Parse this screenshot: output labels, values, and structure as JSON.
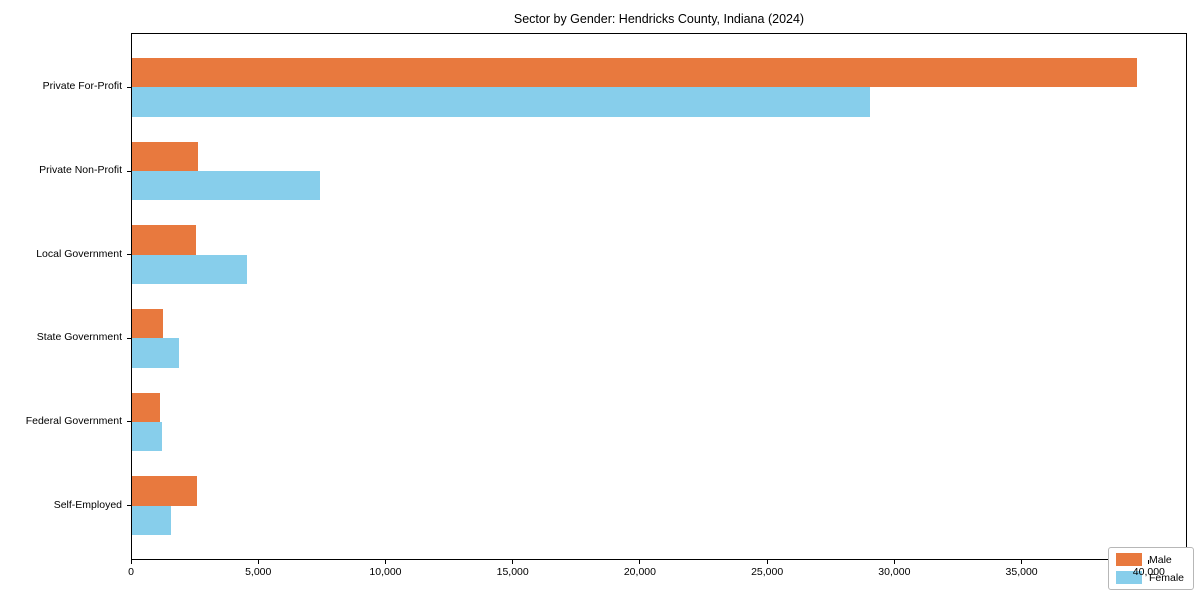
{
  "title": "Sector by Gender: Hendricks County, Indiana (2024)",
  "chart_data": {
    "type": "bar",
    "orientation": "horizontal",
    "title": "Sector by Gender: Hendricks County, Indiana (2024)",
    "xlabel": "",
    "ylabel": "",
    "grid": false,
    "legend_position": "lower right",
    "xlim": [
      0,
      41500
    ],
    "x_tick_values": [
      0,
      5000,
      10000,
      15000,
      20000,
      25000,
      30000,
      35000,
      40000
    ],
    "x_tick_labels": [
      "0",
      "5,000",
      "10,000",
      "15,000",
      "20,000",
      "25,000",
      "30,000",
      "35,000",
      "40,000"
    ],
    "categories": [
      "Private For-Profit",
      "Private Non-Profit",
      "Local Government",
      "State Government",
      "Federal Government",
      "Self-Employed"
    ],
    "series": [
      {
        "name": "Male",
        "color": "#e8793e",
        "values": [
          39500,
          2600,
          2500,
          1200,
          1100,
          2550
        ]
      },
      {
        "name": "Female",
        "color": "#87ceeb",
        "values": [
          29000,
          7400,
          4500,
          1850,
          1180,
          1530
        ]
      }
    ]
  },
  "colors": {
    "male": "#e8793e",
    "female": "#87ceeb",
    "axis": "#000000",
    "background": "#ffffff",
    "legend_border": "#b7b7b7"
  }
}
